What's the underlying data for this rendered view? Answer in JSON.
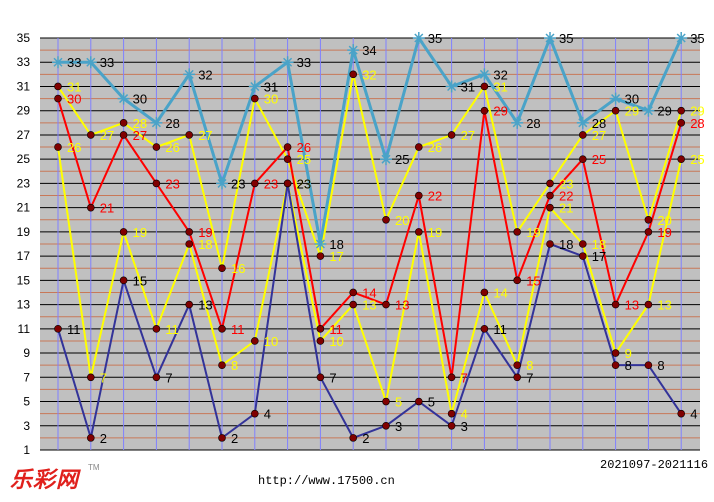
{
  "branding": {
    "logo_text": "乐彩网",
    "tm": "TM",
    "website": "http://www.17500.cn"
  },
  "period_label": "2021097-2021116",
  "chart_data": {
    "type": "line",
    "ylim": [
      1,
      35
    ],
    "y_ticks": [
      1,
      3,
      5,
      7,
      9,
      11,
      13,
      15,
      17,
      19,
      21,
      23,
      25,
      27,
      29,
      31,
      33,
      35
    ],
    "grid": true,
    "x_count": 20,
    "series": [
      {
        "color": "#4aa3c8",
        "marker": "star",
        "label_color": "#000000",
        "values": [
          33,
          33,
          30,
          28,
          32,
          23,
          31,
          33,
          18,
          34,
          25,
          35,
          31,
          32,
          28,
          35,
          28,
          30,
          29,
          35
        ]
      },
      {
        "color": "#ffff00",
        "marker": "dot",
        "label_color": "#ffff00",
        "values": [
          31,
          27,
          28,
          26,
          27,
          16,
          30,
          25,
          17,
          32,
          20,
          26,
          27,
          31,
          19,
          23,
          27,
          29,
          20,
          29
        ]
      },
      {
        "color": "#ff0000",
        "marker": "dot",
        "label_color": "#ff0000",
        "values": [
          30,
          21,
          27,
          23,
          19,
          11,
          23,
          26,
          11,
          14,
          13,
          22,
          7,
          29,
          15,
          22,
          25,
          13,
          19,
          28
        ]
      },
      {
        "color": "#ffff00",
        "marker": "dot",
        "label_color": "#ffff00",
        "values": [
          26,
          7,
          19,
          11,
          18,
          8,
          10,
          23,
          10,
          13,
          5,
          19,
          4,
          14,
          8,
          21,
          18,
          9,
          13,
          25
        ]
      },
      {
        "color": "#333399",
        "marker": "dot",
        "label_color": "#000000",
        "values": [
          11,
          2,
          15,
          7,
          13,
          2,
          4,
          23,
          7,
          2,
          3,
          5,
          3,
          11,
          7,
          18,
          17,
          8,
          8,
          4
        ]
      }
    ]
  },
  "colors": {
    "plot_bg": "#c0c0c0",
    "grid_major": "#000000",
    "grid_minor": "#c87858",
    "vgrid": "#8080ff",
    "marker_fill": "#800000"
  }
}
